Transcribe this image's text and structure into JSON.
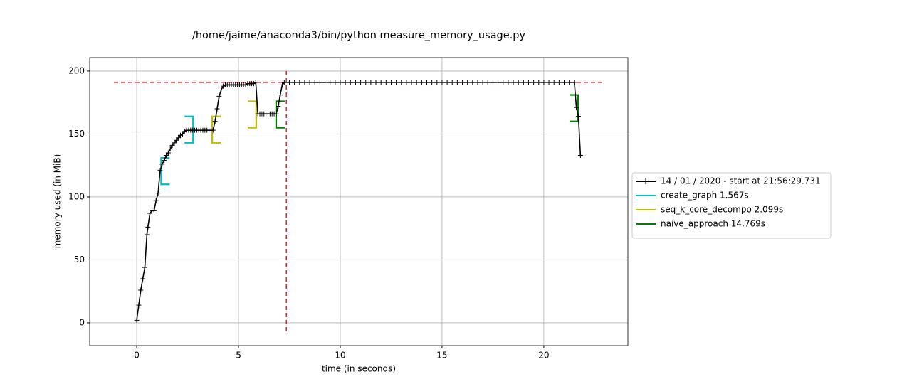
{
  "chart_data": {
    "type": "line",
    "title": "/home/jaime/anaconda3/bin/python measure_memory_usage.py",
    "x_label": "time (in seconds)",
    "y_label": "memory used (in MiB)",
    "xlim": [
      -2.31,
      24.13
    ],
    "ylim": [
      -18.1,
      210.7
    ],
    "xticks": [
      0,
      5,
      10,
      15,
      20
    ],
    "yticks": [
      0,
      50,
      100,
      150,
      200
    ],
    "grid": true,
    "legend": "outside right",
    "series": [
      {
        "name": "14 / 01 / 2020 - start at 21:56:29.731",
        "color": "#000000",
        "x": [
          0,
          0.1,
          0.2,
          0.3,
          0.4,
          0.5,
          0.55,
          0.65,
          0.75,
          0.85,
          0.95,
          1.05,
          1.15,
          1.25,
          1.35,
          1.45,
          1.55,
          1.65,
          1.75,
          1.85,
          1.95,
          2.05,
          2.15,
          2.25,
          2.35,
          2.45,
          2.55,
          2.65,
          2.75,
          2.85,
          2.95,
          3.05,
          3.15,
          3.25,
          3.35,
          3.45,
          3.55,
          3.65,
          3.75,
          3.85,
          3.95,
          4.05,
          4.15,
          4.25,
          4.35,
          4.45,
          4.55,
          4.65,
          4.75,
          4.85,
          4.95,
          5.05,
          5.15,
          5.25,
          5.35,
          5.45,
          5.55,
          5.65,
          5.75,
          5.85,
          5.95,
          6.05,
          6.15,
          6.25,
          6.35,
          6.45,
          6.55,
          6.65,
          6.75,
          6.85,
          6.95,
          7.05,
          7.15,
          7.25,
          7.5,
          7.75,
          8,
          8.25,
          8.5,
          8.75,
          9,
          9.25,
          9.5,
          9.75,
          10,
          10.25,
          10.5,
          10.75,
          11,
          11.25,
          11.5,
          11.75,
          12,
          12.25,
          12.5,
          12.75,
          13,
          13.25,
          13.5,
          13.75,
          14,
          14.25,
          14.5,
          14.75,
          15,
          15.25,
          15.5,
          15.75,
          16,
          16.25,
          16.5,
          16.75,
          17,
          17.25,
          17.5,
          17.75,
          18,
          18.25,
          18.5,
          18.75,
          19,
          19.25,
          19.5,
          19.75,
          20,
          20.25,
          20.5,
          20.75,
          21,
          21.25,
          21.5,
          21.6,
          21.7,
          21.8
        ],
        "values": [
          2,
          14,
          26,
          35,
          44,
          70,
          76,
          87,
          89,
          89,
          97,
          103,
          121,
          126,
          129,
          133,
          135,
          138,
          141,
          143,
          145,
          147,
          149,
          150,
          152,
          153,
          153,
          153,
          153,
          153,
          153,
          153,
          153,
          153,
          153,
          153,
          153,
          153,
          153,
          160,
          170,
          180,
          185,
          188,
          189,
          189,
          189,
          189,
          189,
          189,
          189,
          189,
          189,
          189,
          189,
          190,
          190,
          190,
          190,
          191,
          166,
          166,
          166,
          166,
          166,
          166,
          166,
          166,
          166,
          166,
          172,
          181,
          189,
          191,
          191,
          191,
          191,
          191,
          191,
          191,
          191,
          191,
          191,
          191,
          191,
          191,
          191,
          191,
          191,
          191,
          191,
          191,
          191,
          191,
          191,
          191,
          191,
          191,
          191,
          191,
          191,
          191,
          191,
          191,
          191,
          191,
          191,
          191,
          191,
          191,
          191,
          191,
          191,
          191,
          191,
          191,
          191,
          191,
          191,
          191,
          191,
          191,
          191,
          191,
          191,
          191,
          191,
          191,
          191,
          191,
          191,
          171,
          164,
          133
        ]
      }
    ],
    "functions": [
      {
        "name": "create_graph 1.567s",
        "color": "#00bfbf",
        "start": {
          "time": 1.2,
          "low": 110,
          "high": 131
        },
        "end": {
          "time": 2.77,
          "low": 143,
          "high": 164
        }
      },
      {
        "name": "seq_k_core_decompo 2.099s",
        "color": "#bfbf00",
        "start": {
          "time": 3.71,
          "low": 143,
          "high": 164
        },
        "end": {
          "time": 5.87,
          "low": 155,
          "high": 176
        }
      },
      {
        "name": "naive_approach 14.769s",
        "color": "#008000",
        "start": {
          "time": 6.85,
          "low": 155,
          "high": 176
        },
        "end": {
          "time": 21.68,
          "low": 160,
          "high": 181
        }
      }
    ],
    "peak": {
      "time": 7.35,
      "memory": 191,
      "color": "#d62728"
    }
  }
}
